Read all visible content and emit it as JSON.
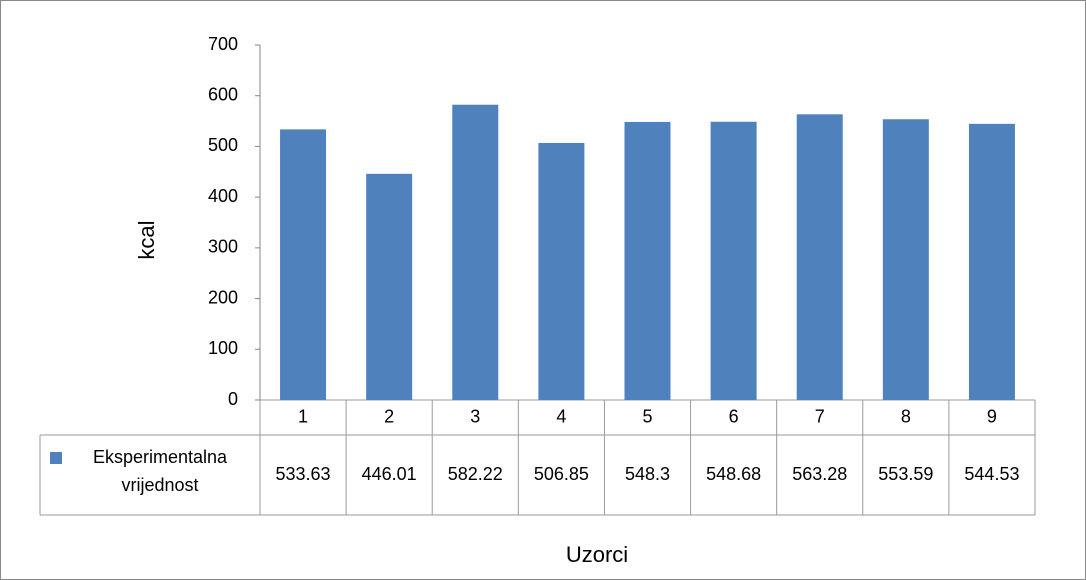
{
  "chart_data": {
    "type": "bar",
    "categories": [
      "1",
      "2",
      "3",
      "4",
      "5",
      "6",
      "7",
      "8",
      "9"
    ],
    "series": [
      {
        "name": "Eksperimentalna vrijednost",
        "color": "#4f81bd",
        "values": [
          533.63,
          446.01,
          582.22,
          506.85,
          548.3,
          548.68,
          563.28,
          553.59,
          544.53
        ]
      }
    ],
    "y_label": "kcal",
    "x_label": "Uzorci",
    "ylim": [
      0,
      700
    ],
    "yticks": [
      0,
      100,
      200,
      300,
      400,
      500,
      600,
      700
    ],
    "grid": false,
    "data_table": true
  }
}
